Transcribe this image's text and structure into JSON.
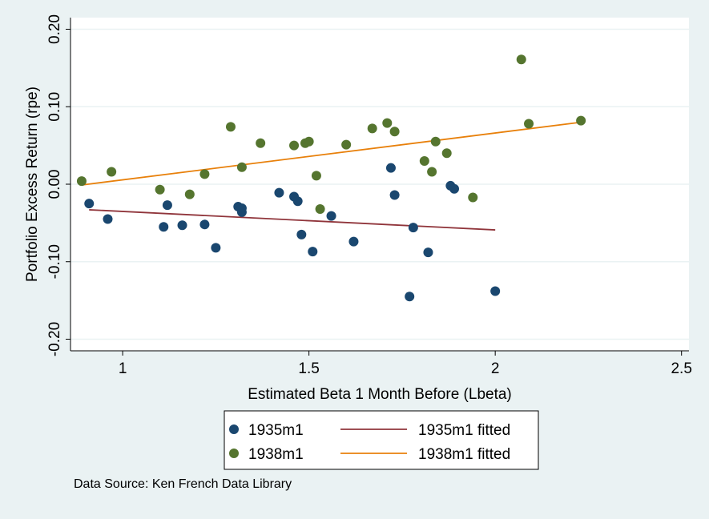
{
  "chart_data": {
    "type": "scatter",
    "xlabel": "Estimated Beta 1 Month Before (Lbeta)",
    "ylabel": "Portfolio Excess Return (rpe)",
    "xlim": [
      0.86,
      2.52
    ],
    "ylim": [
      -0.215,
      0.215
    ],
    "xticks": [
      1,
      1.5,
      2,
      2.5
    ],
    "xtick_labels": [
      "1",
      "1.5",
      "2",
      "2.5"
    ],
    "yticks": [
      -0.2,
      -0.1,
      0,
      0.1,
      0.2
    ],
    "ytick_labels": [
      "-0.20",
      "-0.10",
      "0.00",
      "0.10",
      "0.20"
    ],
    "grid": true,
    "legend_position": "bottom",
    "series": [
      {
        "name": "1935m1",
        "kind": "scatter",
        "color": "#1a476f",
        "points": [
          [
            0.91,
            -0.025
          ],
          [
            0.96,
            -0.045
          ],
          [
            1.11,
            -0.055
          ],
          [
            1.12,
            -0.027
          ],
          [
            1.16,
            -0.053
          ],
          [
            1.22,
            -0.052
          ],
          [
            1.25,
            -0.082
          ],
          [
            1.31,
            -0.029
          ],
          [
            1.32,
            -0.036
          ],
          [
            1.32,
            -0.031
          ],
          [
            1.42,
            -0.011
          ],
          [
            1.46,
            -0.016
          ],
          [
            1.47,
            -0.022
          ],
          [
            1.48,
            -0.065
          ],
          [
            1.51,
            -0.087
          ],
          [
            1.56,
            -0.041
          ],
          [
            1.62,
            -0.074
          ],
          [
            1.72,
            0.021
          ],
          [
            1.73,
            -0.014
          ],
          [
            1.77,
            -0.145
          ],
          [
            1.78,
            -0.056
          ],
          [
            1.82,
            -0.088
          ],
          [
            1.88,
            -0.002
          ],
          [
            1.89,
            -0.006
          ],
          [
            2.0,
            -0.138
          ]
        ]
      },
      {
        "name": "1938m1",
        "kind": "scatter",
        "color": "#55752f",
        "points": [
          [
            0.89,
            0.004
          ],
          [
            0.97,
            0.016
          ],
          [
            1.1,
            -0.007
          ],
          [
            1.18,
            -0.013
          ],
          [
            1.22,
            0.013
          ],
          [
            1.29,
            0.074
          ],
          [
            1.32,
            0.022
          ],
          [
            1.37,
            0.053
          ],
          [
            1.46,
            0.05
          ],
          [
            1.49,
            0.053
          ],
          [
            1.5,
            0.055
          ],
          [
            1.52,
            0.011
          ],
          [
            1.53,
            -0.032
          ],
          [
            1.6,
            0.051
          ],
          [
            1.67,
            0.072
          ],
          [
            1.71,
            0.079
          ],
          [
            1.73,
            0.068
          ],
          [
            1.81,
            0.03
          ],
          [
            1.83,
            0.016
          ],
          [
            1.84,
            0.055
          ],
          [
            1.87,
            0.04
          ],
          [
            1.94,
            -0.017
          ],
          [
            2.07,
            0.161
          ],
          [
            2.09,
            0.078
          ],
          [
            2.23,
            0.082
          ]
        ]
      },
      {
        "name": "1935m1 fitted",
        "kind": "line",
        "color": "#90353b",
        "points": [
          [
            0.91,
            -0.033
          ],
          [
            2.0,
            -0.059
          ]
        ]
      },
      {
        "name": "1938m1 fitted",
        "kind": "line",
        "color": "#e8800b",
        "points": [
          [
            0.89,
            -0.001
          ],
          [
            2.23,
            0.08
          ]
        ]
      }
    ],
    "annotation": "Data Source: Ken French Data Library"
  }
}
